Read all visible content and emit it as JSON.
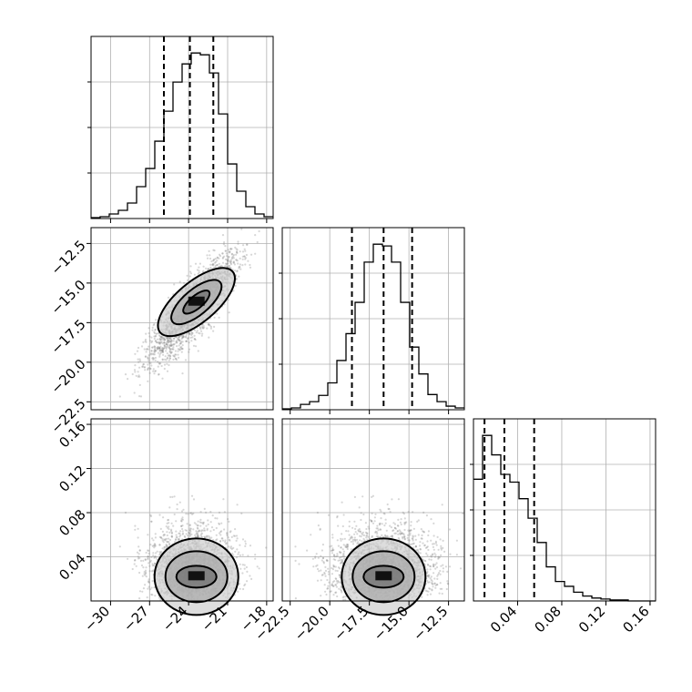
{
  "chart_data": {
    "type": "corner",
    "grid": true,
    "parameters": [
      {
        "range": [
          -31.5,
          -17.5
        ],
        "ticks": [
          -30,
          -27,
          -24,
          -21,
          -18
        ],
        "tick_labels": [
          "−30",
          "−27",
          "−24",
          "−21",
          "−18"
        ],
        "quantiles": [
          -25.9,
          -23.9,
          -22.1
        ],
        "hist_edges": [
          -31.5,
          -30.8,
          -30.1,
          -29.4,
          -28.7,
          -28.0,
          -27.3,
          -26.6,
          -25.9,
          -25.2,
          -24.5,
          -23.8,
          -23.1,
          -22.4,
          -21.7,
          -21.0,
          -20.3,
          -19.6,
          -18.9,
          -18.2,
          -17.5
        ],
        "hist_counts": [
          1,
          2,
          5,
          9,
          17,
          35,
          55,
          85,
          118,
          150,
          170,
          182,
          180,
          160,
          115,
          60,
          30,
          13,
          5,
          2
        ]
      },
      {
        "range": [
          -23.0,
          -11.5
        ],
        "ticks": [
          -22.5,
          -20.0,
          -17.5,
          -15.0,
          -12.5
        ],
        "tick_labels": [
          "−22.5",
          "−20.0",
          "−17.5",
          "−15.0",
          "−12.5"
        ],
        "quantiles": [
          -18.6,
          -16.6,
          -14.8
        ],
        "hist_edges": [
          -23.0,
          -22.425,
          -21.85,
          -21.275,
          -20.7,
          -20.125,
          -19.55,
          -18.975,
          -18.4,
          -17.825,
          -17.25,
          -16.675,
          -16.1,
          -15.525,
          -14.95,
          -14.375,
          -13.8,
          -13.225,
          -12.65,
          -12.075,
          -11.5
        ],
        "hist_counts": [
          1,
          2,
          6,
          9,
          16,
          30,
          55,
          85,
          120,
          165,
          185,
          183,
          165,
          120,
          70,
          40,
          17,
          9,
          4,
          2
        ]
      },
      {
        "range": [
          0.0,
          0.165
        ],
        "ticks": [
          0.04,
          0.08,
          0.12,
          0.16
        ],
        "tick_labels": [
          "0.04",
          "0.08",
          "0.12",
          "0.16"
        ],
        "quantiles": [
          0.01,
          0.028,
          0.055
        ],
        "hist_edges": [
          0.0,
          0.00825,
          0.0165,
          0.02475,
          0.033,
          0.04125,
          0.0495,
          0.05775,
          0.066,
          0.07425,
          0.0825,
          0.09075,
          0.099,
          0.10725,
          0.1155,
          0.12375,
          0.132,
          0.14025,
          0.1485,
          0.15675,
          0.165
        ],
        "hist_counts": [
          125,
          170,
          150,
          130,
          122,
          105,
          85,
          60,
          35,
          20,
          15,
          9,
          5,
          3,
          2,
          1,
          1,
          0,
          0,
          0
        ]
      }
    ]
  }
}
